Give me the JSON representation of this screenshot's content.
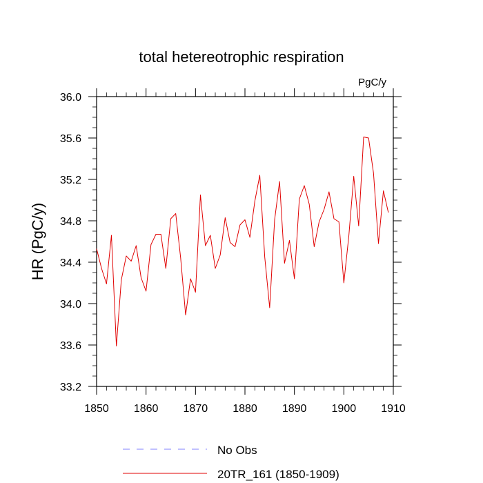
{
  "chart_data": {
    "type": "line",
    "title": "total hetereotrophic respiration",
    "units_label": "PgC/y",
    "ylabel": "HR  (PgC/y)",
    "xlabel": "",
    "xlim": [
      1850,
      1910
    ],
    "ylim": [
      33.2,
      36.0
    ],
    "x_ticks": [
      1850,
      1860,
      1870,
      1880,
      1890,
      1900,
      1910
    ],
    "y_ticks": [
      "33.2",
      "33.6",
      "34.0",
      "34.4",
      "34.8",
      "35.2",
      "35.6",
      "36.0"
    ],
    "series": [
      {
        "name": "No Obs",
        "color": "#8080ff",
        "dash": true,
        "x": [],
        "values": []
      },
      {
        "name": "20TR_161 (1850-1909)",
        "color": "#e00000",
        "dash": false,
        "x": [
          1850,
          1851,
          1852,
          1853,
          1854,
          1855,
          1856,
          1857,
          1858,
          1859,
          1860,
          1861,
          1862,
          1863,
          1864,
          1865,
          1866,
          1867,
          1868,
          1869,
          1870,
          1871,
          1872,
          1873,
          1874,
          1875,
          1876,
          1877,
          1878,
          1879,
          1880,
          1881,
          1882,
          1883,
          1884,
          1885,
          1886,
          1887,
          1888,
          1889,
          1890,
          1891,
          1892,
          1893,
          1894,
          1895,
          1896,
          1897,
          1898,
          1899,
          1900,
          1901,
          1902,
          1903,
          1904,
          1905,
          1906,
          1907,
          1908,
          1909
        ],
        "values": [
          34.53,
          34.34,
          34.19,
          34.66,
          33.59,
          34.23,
          34.46,
          34.41,
          34.56,
          34.25,
          34.12,
          34.57,
          34.67,
          34.67,
          34.34,
          34.82,
          34.87,
          34.44,
          33.89,
          34.24,
          34.11,
          35.05,
          34.56,
          34.66,
          34.34,
          34.47,
          34.83,
          34.59,
          34.55,
          34.76,
          34.81,
          34.64,
          34.99,
          35.24,
          34.45,
          33.96,
          34.81,
          35.18,
          34.39,
          34.61,
          34.24,
          35.01,
          35.14,
          34.96,
          34.55,
          34.79,
          34.91,
          35.08,
          34.82,
          34.79,
          34.2,
          34.65,
          35.23,
          34.75,
          35.61,
          35.6,
          35.26,
          34.58,
          35.09,
          34.88
        ]
      }
    ],
    "legend": {
      "placement": "bottom"
    }
  }
}
